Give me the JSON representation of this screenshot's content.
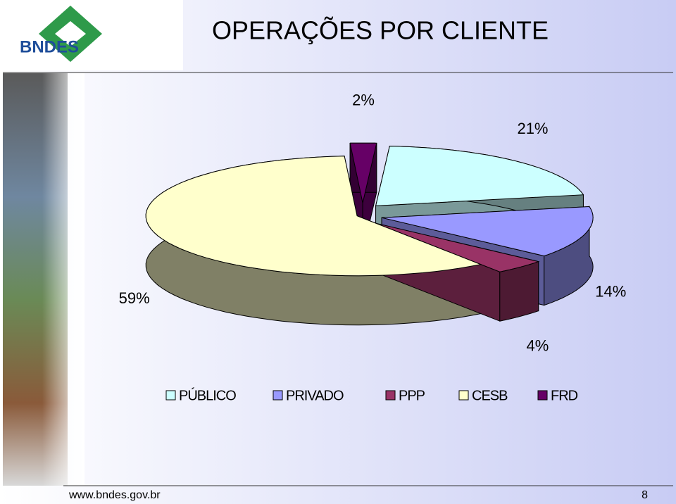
{
  "logo": "BNDES",
  "footer": {
    "url": "www.bndes.gov.br",
    "page": "8"
  },
  "chart_data": {
    "type": "pie3d",
    "title": "OPERAÇÕES POR CLIENTE",
    "categories": [
      "PÚBLICO",
      "PRIVADO",
      "PPP",
      "CESB",
      "FRD"
    ],
    "values": [
      21,
      14,
      4,
      59,
      2
    ],
    "value_labels": [
      "21%",
      "14%",
      "4%",
      "59%",
      "2%"
    ],
    "colors": [
      "#ccffff",
      "#9999ff",
      "#993366",
      "#ffffcc",
      "#660066"
    ],
    "legend": "bottom"
  }
}
